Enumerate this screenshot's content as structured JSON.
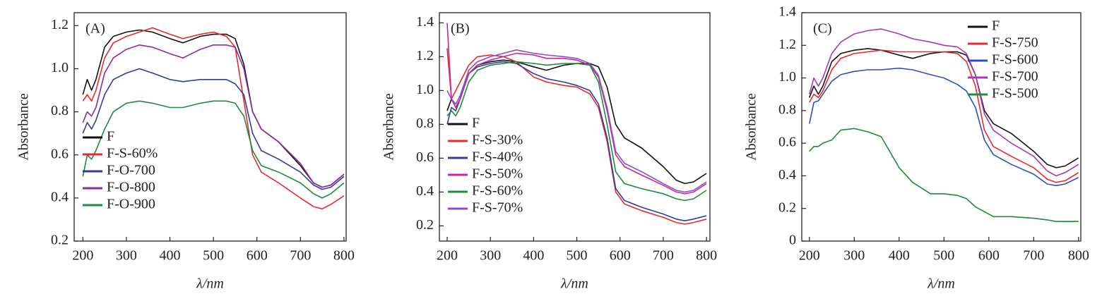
{
  "chart_data": [
    {
      "type": "line",
      "panel_label": "(A)",
      "x_label": "λ/nm",
      "y_label": "Absorbance",
      "x": [
        200,
        210,
        220,
        230,
        250,
        270,
        300,
        330,
        360,
        400,
        430,
        470,
        500,
        530,
        550,
        570,
        590,
        610,
        650,
        700,
        730,
        750,
        770,
        800
      ],
      "series": [
        {
          "name": "F",
          "color": "#111111",
          "values": [
            0.88,
            0.95,
            0.9,
            0.95,
            1.1,
            1.15,
            1.17,
            1.18,
            1.17,
            1.14,
            1.12,
            1.15,
            1.16,
            1.16,
            1.14,
            1.02,
            0.8,
            0.72,
            0.66,
            0.55,
            0.47,
            0.45,
            0.46,
            0.51
          ]
        },
        {
          "name": "F-S-60%",
          "color": "#e8292e",
          "values": [
            0.85,
            0.88,
            0.85,
            0.9,
            1.05,
            1.12,
            1.15,
            1.17,
            1.19,
            1.16,
            1.14,
            1.16,
            1.17,
            1.15,
            1.1,
            0.85,
            0.6,
            0.52,
            0.47,
            0.4,
            0.36,
            0.35,
            0.37,
            0.41
          ]
        },
        {
          "name": "F-O-700",
          "color": "#2e3d9c",
          "values": [
            0.7,
            0.75,
            0.72,
            0.76,
            0.88,
            0.95,
            0.98,
            1.0,
            0.98,
            0.95,
            0.94,
            0.95,
            0.95,
            0.95,
            0.93,
            0.88,
            0.7,
            0.62,
            0.58,
            0.52,
            0.46,
            0.44,
            0.45,
            0.5
          ]
        },
        {
          "name": "F-O-800",
          "color": "#8e2a9a",
          "values": [
            0.75,
            0.8,
            0.78,
            0.82,
            0.98,
            1.05,
            1.09,
            1.11,
            1.1,
            1.07,
            1.05,
            1.09,
            1.11,
            1.11,
            1.1,
            1.0,
            0.8,
            0.72,
            0.66,
            0.56,
            0.47,
            0.45,
            0.46,
            0.51
          ]
        },
        {
          "name": "F-O-900",
          "color": "#1f8a3a",
          "values": [
            0.5,
            0.6,
            0.58,
            0.62,
            0.72,
            0.8,
            0.84,
            0.85,
            0.84,
            0.82,
            0.82,
            0.84,
            0.85,
            0.85,
            0.84,
            0.78,
            0.62,
            0.55,
            0.52,
            0.47,
            0.42,
            0.4,
            0.42,
            0.47
          ]
        }
      ],
      "xlim": [
        180,
        805
      ],
      "xticks": [
        200,
        300,
        400,
        500,
        600,
        700,
        800
      ],
      "ylim": [
        0.2,
        1.26
      ],
      "yticks": [
        0.2,
        0.4,
        0.6,
        0.8,
        {
          "value": 1,
          "label": "1.0"
        },
        1.2
      ],
      "legend": "center left"
    },
    {
      "type": "line",
      "panel_label": "(B)",
      "x_label": "λ/nm",
      "y_label": "Absorbance",
      "x": [
        200,
        210,
        220,
        230,
        250,
        270,
        300,
        330,
        360,
        400,
        430,
        470,
        500,
        530,
        550,
        570,
        590,
        610,
        650,
        700,
        730,
        750,
        770,
        800
      ],
      "series": [
        {
          "name": "F",
          "color": "#111111",
          "values": [
            0.88,
            0.95,
            0.9,
            0.95,
            1.1,
            1.15,
            1.17,
            1.18,
            1.17,
            1.14,
            1.12,
            1.15,
            1.16,
            1.16,
            1.14,
            1.02,
            0.8,
            0.72,
            0.66,
            0.55,
            0.47,
            0.45,
            0.46,
            0.51
          ]
        },
        {
          "name": "F-S-30%",
          "color": "#e8292e",
          "values": [
            1.25,
            0.95,
            1.0,
            1.05,
            1.15,
            1.2,
            1.21,
            1.2,
            1.17,
            1.08,
            1.05,
            1.03,
            1.02,
            0.98,
            0.9,
            0.7,
            0.4,
            0.33,
            0.29,
            0.25,
            0.22,
            0.21,
            0.22,
            0.24
          ]
        },
        {
          "name": "F-S-40%",
          "color": "#2e3d9c",
          "values": [
            0.8,
            0.9,
            0.88,
            0.95,
            1.1,
            1.14,
            1.16,
            1.17,
            1.16,
            1.1,
            1.07,
            1.05,
            1.03,
            1.0,
            0.92,
            0.72,
            0.42,
            0.35,
            0.31,
            0.27,
            0.24,
            0.23,
            0.24,
            0.26
          ]
        },
        {
          "name": "F-S-50%",
          "color": "#c2299a",
          "values": [
            1.4,
            0.95,
            0.9,
            0.95,
            1.1,
            1.15,
            1.18,
            1.2,
            1.22,
            1.21,
            1.19,
            1.19,
            1.18,
            1.15,
            1.08,
            0.88,
            0.62,
            0.55,
            0.5,
            0.44,
            0.4,
            0.39,
            0.4,
            0.45
          ]
        },
        {
          "name": "F-S-60%",
          "color": "#1f8a3a",
          "values": [
            0.85,
            0.88,
            0.85,
            0.9,
            1.05,
            1.12,
            1.15,
            1.16,
            1.17,
            1.16,
            1.15,
            1.16,
            1.16,
            1.15,
            1.05,
            0.8,
            0.52,
            0.45,
            0.42,
            0.39,
            0.36,
            0.35,
            0.36,
            0.41
          ]
        },
        {
          "name": "F-S-70%",
          "color": "#8a4fc4",
          "values": [
            1.0,
            0.95,
            0.92,
            0.97,
            1.12,
            1.17,
            1.2,
            1.22,
            1.24,
            1.22,
            1.21,
            1.2,
            1.19,
            1.16,
            1.09,
            0.9,
            0.64,
            0.57,
            0.52,
            0.45,
            0.41,
            0.4,
            0.41,
            0.46
          ]
        }
      ],
      "xlim": [
        182,
        808
      ],
      "xticks": [
        200,
        300,
        400,
        500,
        600,
        700,
        800
      ],
      "ylim": [
        0.11,
        1.46
      ],
      "yticks": [
        0.2,
        0.4,
        0.6,
        0.8,
        {
          "value": 1,
          "label": "1.0"
        },
        1.2,
        1.4
      ],
      "legend": "lower left"
    },
    {
      "type": "line",
      "panel_label": "(C)",
      "x_label": "λ/nm",
      "y_label": "Absorbance",
      "x": [
        200,
        210,
        220,
        230,
        250,
        270,
        300,
        330,
        360,
        400,
        430,
        470,
        500,
        530,
        550,
        570,
        590,
        610,
        650,
        700,
        730,
        750,
        770,
        800
      ],
      "series": [
        {
          "name": "F",
          "color": "#111111",
          "values": [
            0.88,
            0.95,
            0.9,
            0.95,
            1.1,
            1.15,
            1.17,
            1.18,
            1.17,
            1.14,
            1.12,
            1.15,
            1.16,
            1.16,
            1.14,
            1.02,
            0.8,
            0.72,
            0.66,
            0.55,
            0.47,
            0.45,
            0.46,
            0.51
          ]
        },
        {
          "name": "F-S-750",
          "color": "#e8292e",
          "values": [
            0.85,
            0.9,
            0.88,
            0.92,
            1.05,
            1.12,
            1.15,
            1.16,
            1.17,
            1.16,
            1.16,
            1.16,
            1.16,
            1.15,
            1.1,
            0.95,
            0.68,
            0.58,
            0.52,
            0.45,
            0.38,
            0.36,
            0.37,
            0.42
          ]
        },
        {
          "name": "F-S-600",
          "color": "#2e4fb8",
          "values": [
            0.72,
            0.85,
            0.86,
            0.9,
            0.98,
            1.02,
            1.04,
            1.05,
            1.05,
            1.06,
            1.05,
            1.02,
            1.0,
            0.96,
            0.92,
            0.82,
            0.62,
            0.53,
            0.47,
            0.41,
            0.35,
            0.34,
            0.35,
            0.39
          ]
        },
        {
          "name": "F-S-700",
          "color": "#a838b0",
          "values": [
            0.9,
            1.0,
            0.95,
            1.0,
            1.15,
            1.22,
            1.27,
            1.29,
            1.3,
            1.27,
            1.24,
            1.22,
            1.2,
            1.19,
            1.15,
            1.02,
            0.78,
            0.68,
            0.6,
            0.52,
            0.43,
            0.4,
            0.42,
            0.47
          ]
        },
        {
          "name": "F-S-500",
          "color": "#1f8a3a",
          "values": [
            0.55,
            0.58,
            0.58,
            0.6,
            0.62,
            0.68,
            0.69,
            0.67,
            0.64,
            0.45,
            0.36,
            0.29,
            0.29,
            0.28,
            0.26,
            0.21,
            0.18,
            0.15,
            0.15,
            0.14,
            0.13,
            0.12,
            0.12,
            0.12
          ]
        }
      ],
      "xlim": [
        183,
        805
      ],
      "xticks": [
        200,
        300,
        400,
        500,
        600,
        700,
        800
      ],
      "ylim": [
        0,
        1.4
      ],
      "yticks": [
        0,
        0.2,
        0.4,
        0.6,
        0.8,
        {
          "value": 1,
          "label": "1.0"
        },
        1.2,
        1.4
      ],
      "legend": "upper right"
    }
  ]
}
